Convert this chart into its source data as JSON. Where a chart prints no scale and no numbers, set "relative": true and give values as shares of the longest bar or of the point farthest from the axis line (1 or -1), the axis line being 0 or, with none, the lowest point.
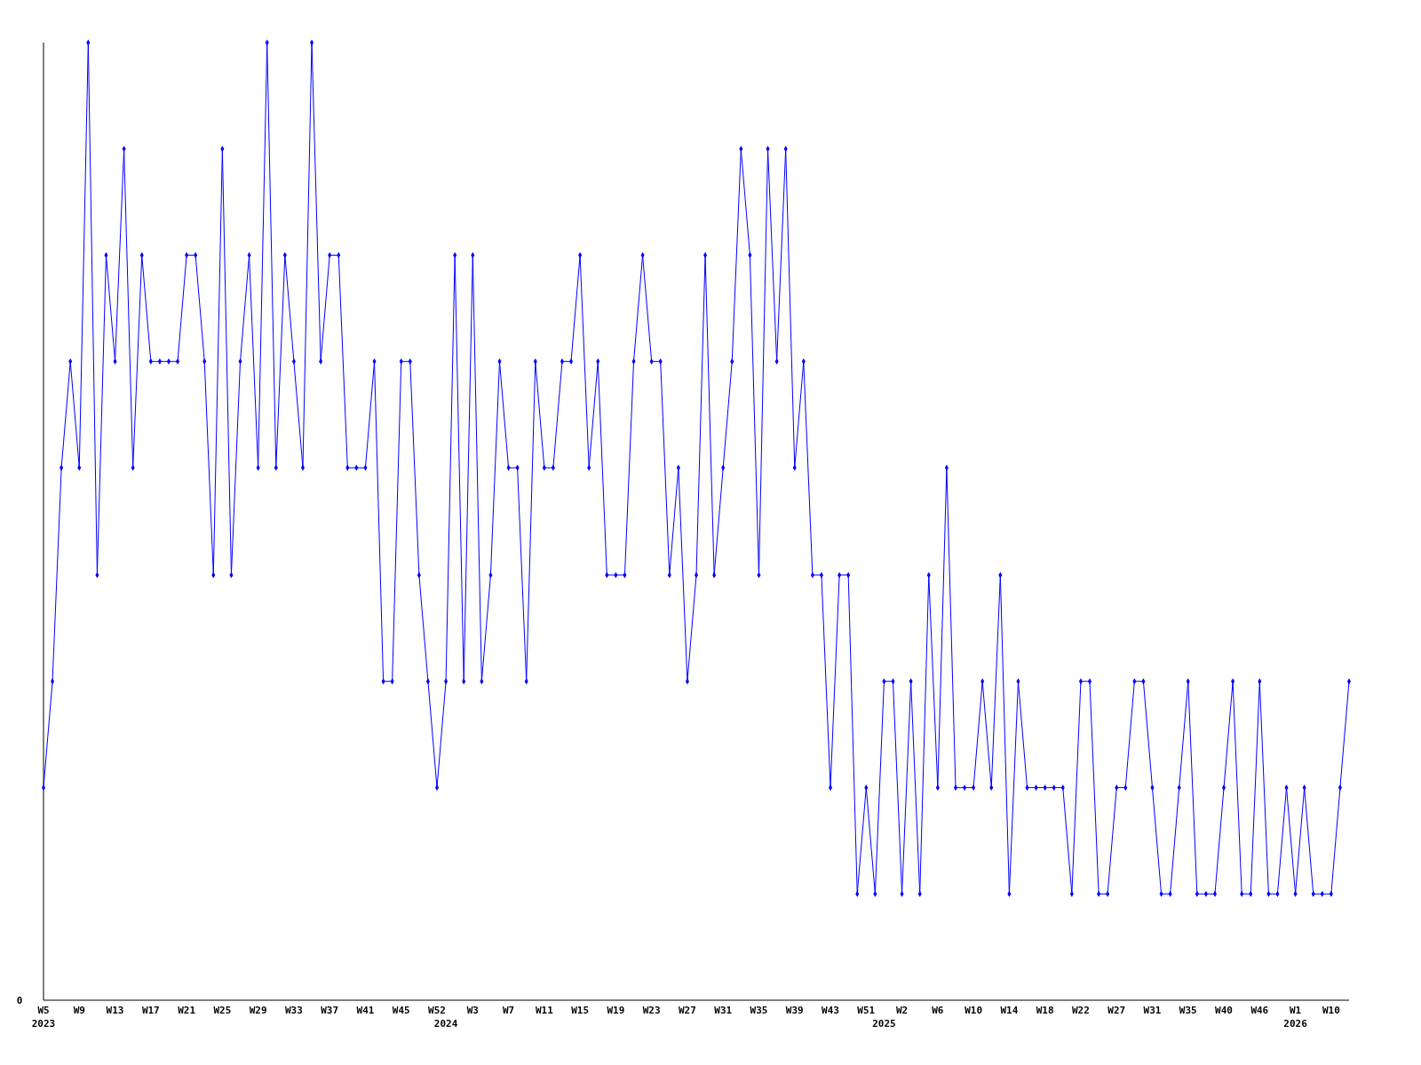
{
  "chart_data": {
    "type": "line",
    "relative": true,
    "marker": "diamond",
    "line_style": "solid",
    "annotations": [
      "0"
    ],
    "categories": [
      "W5\n2023",
      null,
      null,
      null,
      "W9",
      null,
      null,
      null,
      "W13",
      null,
      null,
      null,
      "W17",
      null,
      null,
      null,
      "W21",
      null,
      null,
      null,
      "W25",
      null,
      null,
      null,
      "W29",
      null,
      null,
      null,
      "W33",
      null,
      null,
      null,
      "W37",
      null,
      null,
      null,
      "W41",
      null,
      null,
      null,
      "W45",
      null,
      null,
      null,
      "W52",
      "\n2024",
      null,
      null,
      "W3",
      null,
      null,
      null,
      "W7",
      null,
      null,
      null,
      "W11",
      null,
      null,
      null,
      "W15",
      null,
      null,
      null,
      "W19",
      null,
      null,
      null,
      "W23",
      null,
      null,
      null,
      "W27",
      null,
      null,
      null,
      "W31",
      null,
      null,
      null,
      "W35",
      null,
      null,
      null,
      "W39",
      null,
      null,
      null,
      "W43",
      null,
      null,
      null,
      "W51",
      null,
      "\n2025",
      null,
      "W2",
      null,
      null,
      null,
      "W6",
      null,
      null,
      null,
      "W10",
      null,
      null,
      null,
      "W14",
      null,
      null,
      null,
      "W18",
      null,
      null,
      null,
      "W22",
      null,
      null,
      null,
      "W27",
      null,
      null,
      null,
      "W31",
      null,
      null,
      null,
      "W35",
      null,
      null,
      null,
      "W40",
      null,
      null,
      null,
      "W46",
      null,
      null,
      null,
      "W1\n2026",
      null,
      null,
      null,
      "W10",
      null,
      null
    ],
    "series": [
      {
        "color": "#0000ff",
        "values": [
          0.222,
          0.333,
          0.556,
          0.667,
          0.556,
          1,
          0.444,
          0.778,
          0.667,
          0.889,
          0.556,
          0.778,
          0.667,
          0.667,
          0.667,
          0.667,
          0.778,
          0.778,
          0.667,
          0.444,
          0.889,
          0.444,
          0.667,
          0.778,
          0.556,
          1,
          0.556,
          0.778,
          0.667,
          0.556,
          1,
          0.667,
          0.778,
          0.778,
          0.556,
          0.556,
          0.556,
          0.667,
          0.333,
          0.333,
          0.667,
          0.667,
          0.444,
          0.333,
          0.222,
          0.333,
          0.778,
          0.333,
          0.778,
          0.333,
          0.444,
          0.667,
          0.556,
          0.556,
          0.333,
          0.667,
          0.556,
          0.556,
          0.667,
          0.667,
          0.778,
          0.556,
          0.667,
          0.444,
          0.444,
          0.444,
          0.667,
          0.778,
          0.667,
          0.667,
          0.444,
          0.556,
          0.333,
          0.444,
          0.778,
          0.444,
          0.556,
          0.667,
          0.889,
          0.778,
          0.444,
          0.889,
          0.667,
          0.889,
          0.556,
          0.667,
          0.444,
          0.444,
          0.222,
          0.444,
          0.444,
          0.111,
          0.222,
          0.111,
          0.333,
          0.333,
          0.111,
          0.333,
          0.111,
          0.444,
          0.222,
          0.556,
          0.222,
          0.222,
          0.222,
          0.333,
          0.222,
          0.444,
          0.111,
          0.333,
          0.222,
          0.222,
          0.222,
          0.222,
          0.222,
          0.111,
          0.333,
          0.333,
          0.111,
          0.111,
          0.222,
          0.222,
          0.333,
          0.333,
          0.222,
          0.111,
          0.111,
          0.222,
          0.333,
          0.111,
          0.111,
          0.111,
          0.222,
          0.333,
          0.111,
          0.111,
          0.333,
          0.111,
          0.111,
          0.222,
          0.111,
          0.222,
          0.111,
          0.111,
          0.111,
          0.222,
          0.333
        ]
      }
    ]
  }
}
